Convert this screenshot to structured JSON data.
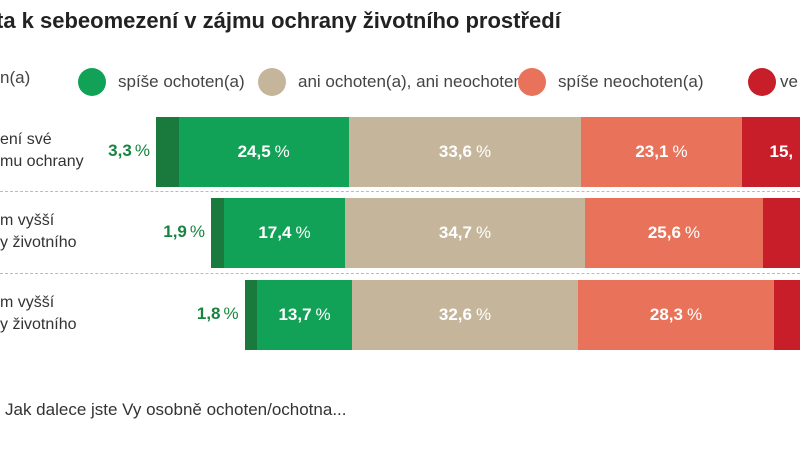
{
  "chart_data": {
    "type": "bar",
    "orientation": "horizontal",
    "stacked": true,
    "title": "ta k sebeomezení v zájmu ochrany životního prostředí",
    "legend": [
      {
        "label": "n(a)",
        "color": "#1a7a3e"
      },
      {
        "label": "spíše ochoten(a)",
        "color": "#12a257"
      },
      {
        "label": "ani ochoten(a), ani neochoten(a)",
        "color": "#c5b59b"
      },
      {
        "label": "spíše neochoten(a)",
        "color": "#e8735a"
      },
      {
        "label": "ve",
        "color": "#c81e2a"
      }
    ],
    "categories": [
      [
        "ení své",
        "mu ochrany"
      ],
      [
        "m vyšší",
        "y životního"
      ],
      [
        "m vyšší",
        "y životního"
      ]
    ],
    "series_values": [
      [
        3.3,
        24.5,
        33.6,
        23.1,
        null
      ],
      [
        1.9,
        17.4,
        34.7,
        25.6,
        null
      ],
      [
        1.8,
        13.7,
        32.6,
        28.3,
        null
      ]
    ],
    "labels": [
      [
        "3,3",
        "24,5",
        "33,6",
        "23,1",
        "15,"
      ],
      [
        "1,9",
        "17,4",
        "34,7",
        "25,6",
        ""
      ],
      [
        "1,8",
        "13,7",
        "32,6",
        "28,3",
        ""
      ]
    ],
    "unit": "%"
  },
  "footer": "Jak dalece jste Vy osobně ochoten/ochotna..."
}
